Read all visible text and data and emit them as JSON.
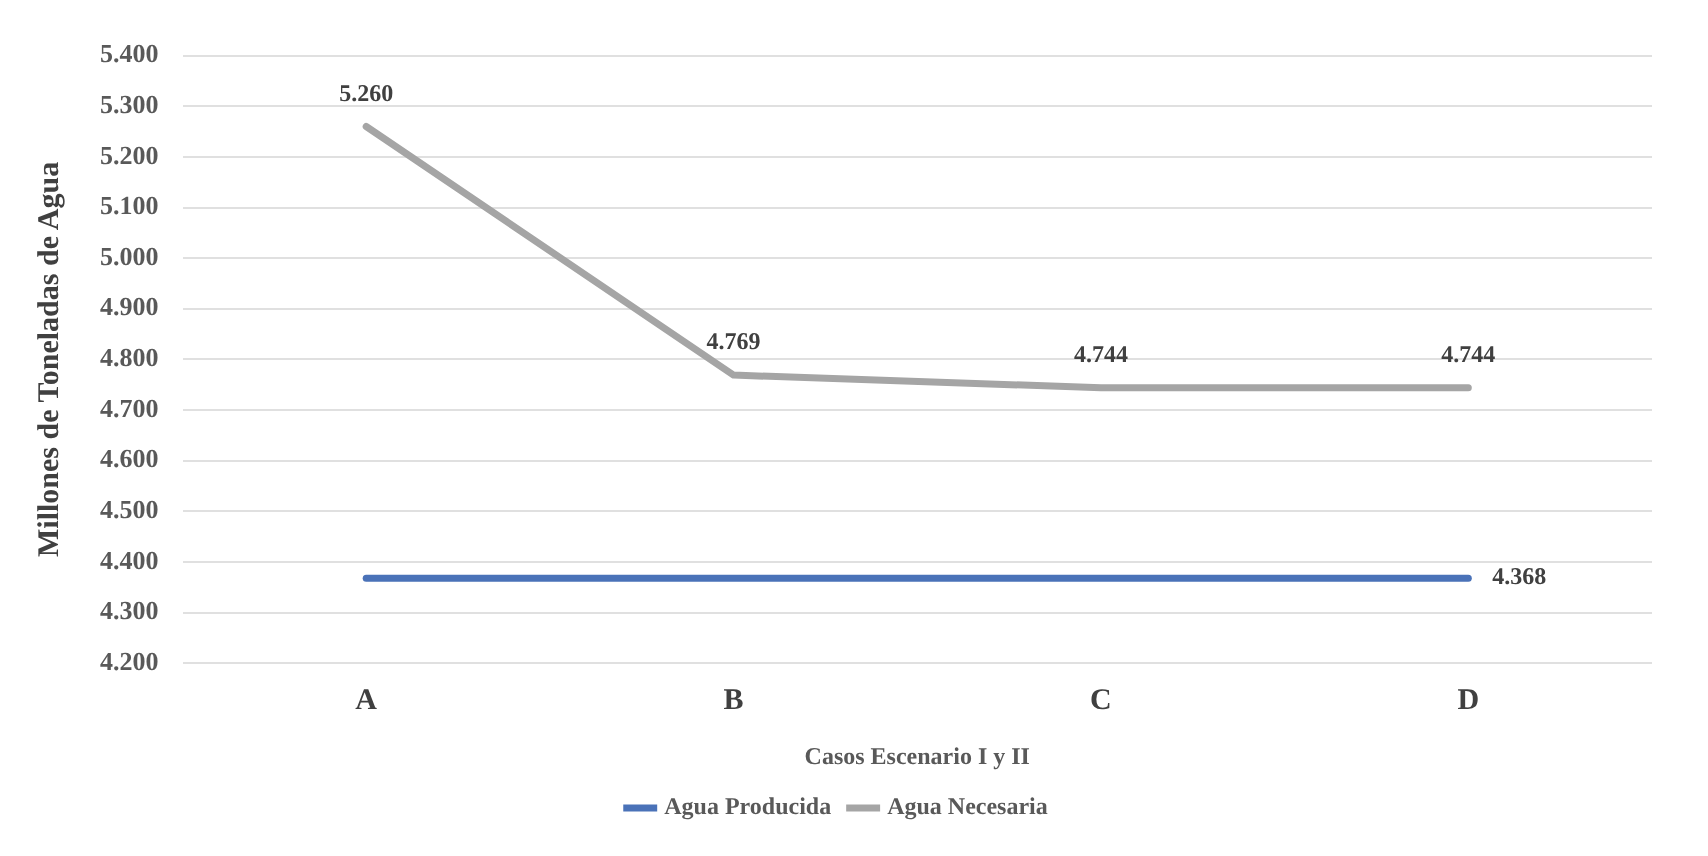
{
  "chart_data": {
    "type": "line",
    "xlabel": "Casos Escenario I y II",
    "ylabel": "Millones de Toneladas de Agua",
    "categories": [
      "A",
      "B",
      "C",
      "D"
    ],
    "series": [
      {
        "name": "Agua Producida",
        "color": "#4a72b8",
        "values": [
          4368,
          4368,
          4368,
          4368
        ],
        "value_labels": [
          null,
          null,
          null,
          "4.368"
        ]
      },
      {
        "name": "Agua Necesaria",
        "color": "#a5a5a5",
        "values": [
          5260,
          4769,
          4744,
          4744
        ],
        "value_labels": [
          "5.260",
          "4.769",
          "4.744",
          "4.744"
        ]
      }
    ],
    "ylim": [
      4200,
      5400
    ],
    "yticks": [
      {
        "value": 4200,
        "label": "4.200"
      },
      {
        "value": 4300,
        "label": "4.300"
      },
      {
        "value": 4400,
        "label": "4.400"
      },
      {
        "value": 4500,
        "label": "4.500"
      },
      {
        "value": 4600,
        "label": "4.600"
      },
      {
        "value": 4700,
        "label": "4.700"
      },
      {
        "value": 4800,
        "label": "4.800"
      },
      {
        "value": 4900,
        "label": "4.900"
      },
      {
        "value": 5000,
        "label": "5.000"
      },
      {
        "value": 5100,
        "label": "5.100"
      },
      {
        "value": 5200,
        "label": "5.200"
      },
      {
        "value": 5300,
        "label": "5.300"
      },
      {
        "value": 5400,
        "label": "5.400"
      }
    ],
    "grid": "y",
    "legend": "bottom",
    "marker": "none",
    "line_style": "solid"
  }
}
